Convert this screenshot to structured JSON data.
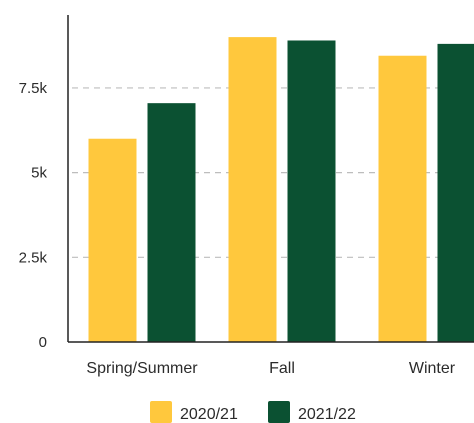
{
  "chart_data": {
    "type": "bar",
    "categories": [
      "Spring/Summer",
      "Fall",
      "Winter"
    ],
    "series": [
      {
        "name": "2020/21",
        "color": "#ffc83d",
        "values": [
          6000,
          9000,
          8450
        ]
      },
      {
        "name": "2021/22",
        "color": "#0b5132",
        "values": [
          7050,
          8900,
          8800
        ]
      }
    ],
    "ylim": [
      0,
      9800
    ],
    "yticks": [
      {
        "value": 0,
        "label": "0"
      },
      {
        "value": 2500,
        "label": "2.5k"
      },
      {
        "value": 5000,
        "label": "5k"
      },
      {
        "value": 7500,
        "label": "7.5k"
      }
    ],
    "grid": true,
    "legend_position": "bottom"
  }
}
